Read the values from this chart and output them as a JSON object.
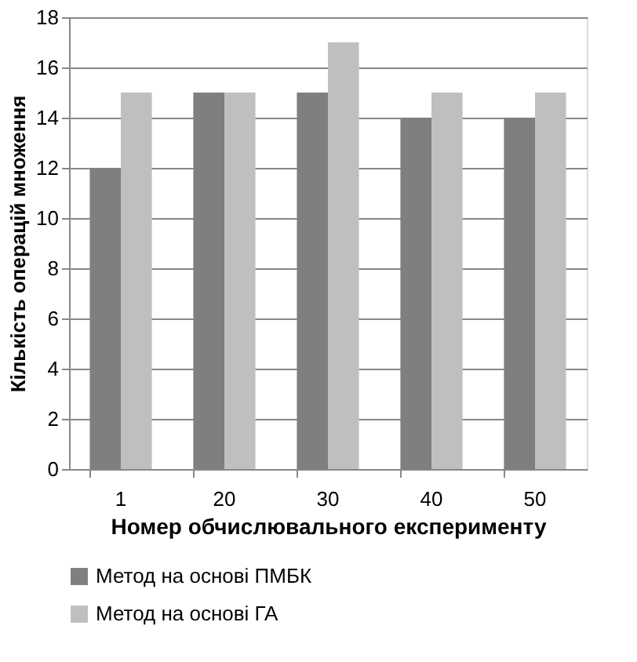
{
  "chart_data": {
    "type": "bar",
    "xlabel": "Номер обчислювального експерименту",
    "ylabel": "Кількість операцій множення",
    "categories": [
      "1",
      "20",
      "30",
      "40",
      "50"
    ],
    "series": [
      {
        "name": "Метод на основі ПМБК",
        "color": "#7f7f7f",
        "values": [
          12,
          15,
          15,
          14,
          14
        ]
      },
      {
        "name": "Метод на основі ГА",
        "color": "#bfbfbf",
        "values": [
          15,
          15,
          17,
          15,
          15
        ]
      }
    ],
    "ylim": [
      0,
      18
    ],
    "yticks": [
      0,
      2,
      4,
      6,
      8,
      10,
      12,
      14,
      16,
      18
    ],
    "grid": "y",
    "legend": "bottom"
  }
}
